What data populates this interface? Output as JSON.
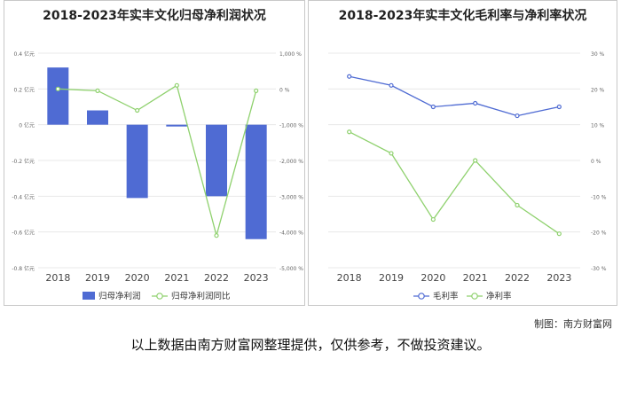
{
  "charts": {
    "left": {
      "title": "2018-2023年实丰文化归母净利润状况",
      "y_left_ticks": [
        "0.4 亿元",
        "0.2 亿元",
        "0 亿元",
        "-0.2 亿元",
        "-0.4 亿元",
        "-0.6 亿元",
        "-0.8 亿元"
      ],
      "y_right_ticks": [
        "1,000 %",
        "0 %",
        "-1,000 %",
        "-2,000 %",
        "-3,000 %",
        "-4,000 %",
        "-5,000 %"
      ],
      "legend": [
        "归母净利润",
        "归母净利润同比"
      ]
    },
    "right": {
      "title": "2018-2023年实丰文化毛利率与净利率状况",
      "y_right_ticks": [
        "30 %",
        "20 %",
        "10 %",
        "0 %",
        "-10 %",
        "-20 %",
        "-30 %"
      ],
      "legend": [
        "毛利率",
        "净利率"
      ]
    }
  },
  "chart_data": [
    {
      "type": "bar",
      "title": "2018-2023年实丰文化归母净利润状况",
      "categories": [
        "2018",
        "2019",
        "2020",
        "2021",
        "2022",
        "2023"
      ],
      "series": [
        {
          "name": "归母净利润",
          "type": "bar",
          "axis": "left",
          "unit": "亿元",
          "values": [
            0.32,
            0.08,
            -0.41,
            -0.01,
            -0.4,
            -0.64
          ],
          "color": "#4f6bd3"
        },
        {
          "name": "归母净利润同比",
          "type": "line",
          "axis": "right",
          "unit": "%",
          "values": [
            0,
            -50,
            -600,
            100,
            -4100,
            -50
          ],
          "color": "#8fd16e"
        }
      ],
      "ylim_left": [
        -0.8,
        0.4
      ],
      "ylim_right": [
        -5000,
        1000
      ],
      "grid": true,
      "legend_position": "bottom"
    },
    {
      "type": "line",
      "title": "2018-2023年实丰文化毛利率与净利率状况",
      "categories": [
        "2018",
        "2019",
        "2020",
        "2021",
        "2022",
        "2023"
      ],
      "series": [
        {
          "name": "毛利率",
          "unit": "%",
          "values": [
            23.5,
            21,
            15,
            16,
            12.5,
            15
          ],
          "color": "#4f6bd3"
        },
        {
          "name": "净利率",
          "unit": "%",
          "values": [
            8,
            2,
            -16.5,
            0,
            -12.5,
            -20.5
          ],
          "color": "#8fd16e"
        }
      ],
      "ylim": [
        -30,
        30
      ],
      "grid": true,
      "legend_position": "bottom"
    }
  ],
  "footer": {
    "credit": "制图：南方财富网",
    "disclaimer": "以上数据由南方财富网整理提供，仅供参考，不做投资建议。"
  }
}
